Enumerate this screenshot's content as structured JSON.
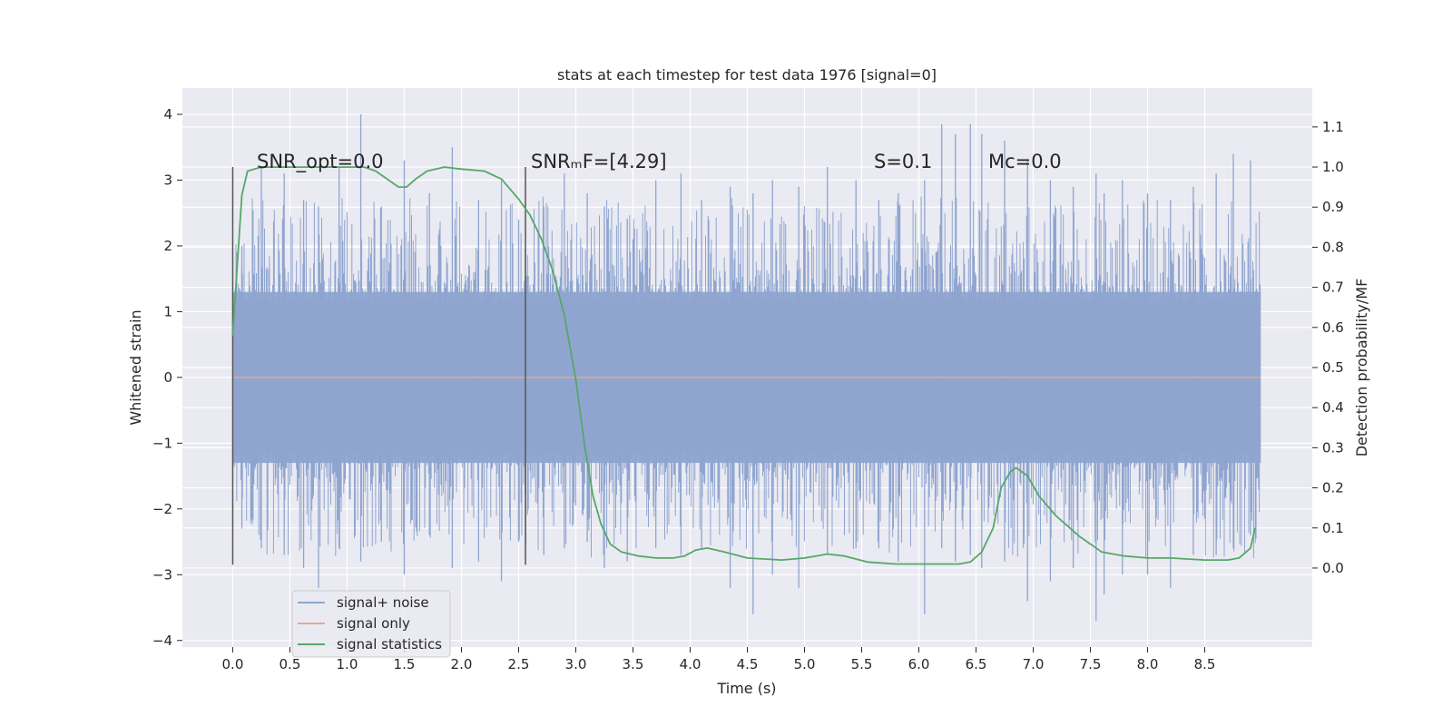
{
  "chart_data": {
    "type": "line",
    "title": "stats at each timestep for test data 1976 [signal=0]",
    "xlabel": "Time (s)",
    "ylabel": "Whitened strain",
    "ylabel_right": "Detection probability/MF",
    "xlim": [
      -0.44,
      9.44
    ],
    "ylim": [
      -4.1,
      4.4
    ],
    "ylim_right": [
      -0.197,
      1.197
    ],
    "x_ticks": [
      0.0,
      0.5,
      1.0,
      1.5,
      2.0,
      2.5,
      3.0,
      3.5,
      4.0,
      4.5,
      5.0,
      5.5,
      6.0,
      6.5,
      7.0,
      7.5,
      8.0,
      8.5
    ],
    "x_tick_labels": [
      "0.0",
      "0.5",
      "1.0",
      "1.5",
      "2.0",
      "2.5",
      "3.0",
      "3.5",
      "4.0",
      "4.5",
      "5.0",
      "5.5",
      "6.0",
      "6.5",
      "7.0",
      "7.5",
      "8.0",
      "8.5"
    ],
    "y_ticks": [
      4,
      3,
      2,
      1,
      0,
      -1,
      -2,
      -3,
      -4
    ],
    "y_tick_labels": [
      "4",
      "3",
      "2",
      "1",
      "0",
      "−1",
      "−2",
      "−3",
      "−4"
    ],
    "y_ticks_right": [
      1.1,
      1.0,
      0.9,
      0.8,
      0.7,
      0.6,
      0.5,
      0.4,
      0.3,
      0.2,
      0.1,
      0.0
    ],
    "y_tick_labels_right": [
      "1.1",
      "1.0",
      "0.9",
      "0.8",
      "0.7",
      "0.6",
      "0.5",
      "0.4",
      "0.3",
      "0.2",
      "0.1",
      "0.0"
    ],
    "grid": true,
    "legend": {
      "placement": "lower-left",
      "entries": [
        {
          "label": "signal+ noise",
          "color": "#8fa5cf"
        },
        {
          "label": "signal only",
          "color": "#e8a991"
        },
        {
          "label": "signal statistics",
          "color": "#55a868"
        }
      ]
    },
    "annotations": [
      {
        "name": "snr-opt-annotation",
        "text": "SNR_opt=0.0",
        "x": 0.2,
        "y": 3.2
      },
      {
        "name": "snr-mf-annotation",
        "text": "SNRₘF=[4.29]",
        "x": 2.6,
        "y": 3.2
      },
      {
        "name": "s-annotation",
        "text": "S=0.1",
        "x": 5.6,
        "y": 3.2
      },
      {
        "name": "mc-annotation",
        "text": "Mc=0.0",
        "x": 6.6,
        "y": 3.2
      }
    ],
    "vlines": [
      {
        "x": 0.0,
        "ymin": -2.85,
        "ymax": 3.2
      },
      {
        "x": 2.56,
        "ymin": -2.85,
        "ymax": 3.2
      }
    ],
    "noise_series": {
      "name": "signal+ noise",
      "x_range": [
        0.0,
        8.99
      ],
      "typical_amplitude": [
        -1.3,
        1.3
      ],
      "color": "#8fa5cf",
      "peaks": [
        {
          "x": 0.08,
          "hi": 2.0,
          "lo": -2.3
        },
        {
          "x": 0.25,
          "hi": 3.2,
          "lo": -2.6
        },
        {
          "x": 0.45,
          "hi": 3.1,
          "lo": -2.7
        },
        {
          "x": 0.62,
          "hi": 2.7,
          "lo": -2.9
        },
        {
          "x": 0.75,
          "hi": 2.6,
          "lo": -3.2
        },
        {
          "x": 0.93,
          "hi": 3.2,
          "lo": -2.6
        },
        {
          "x": 1.12,
          "hi": 4.0,
          "lo": -2.8
        },
        {
          "x": 1.3,
          "hi": 2.6,
          "lo": -2.5
        },
        {
          "x": 1.5,
          "hi": 3.3,
          "lo": -3.0
        },
        {
          "x": 1.72,
          "hi": 2.8,
          "lo": -2.4
        },
        {
          "x": 1.92,
          "hi": 3.5,
          "lo": -2.9
        },
        {
          "x": 2.15,
          "hi": 2.7,
          "lo": -2.8
        },
        {
          "x": 2.35,
          "hi": 3.0,
          "lo": -3.1
        },
        {
          "x": 2.5,
          "hi": 2.4,
          "lo": -2.5
        },
        {
          "x": 2.72,
          "hi": 2.6,
          "lo": -2.7
        },
        {
          "x": 2.9,
          "hi": 3.1,
          "lo": -2.6
        },
        {
          "x": 3.1,
          "hi": 2.8,
          "lo": -2.5
        },
        {
          "x": 3.25,
          "hi": 2.6,
          "lo": -2.9
        },
        {
          "x": 3.45,
          "hi": 2.4,
          "lo": -2.8
        },
        {
          "x": 3.7,
          "hi": 3.0,
          "lo": -2.6
        },
        {
          "x": 3.92,
          "hi": 3.1,
          "lo": -2.7
        },
        {
          "x": 4.1,
          "hi": 2.7,
          "lo": -2.6
        },
        {
          "x": 4.35,
          "hi": 2.9,
          "lo": -3.2
        },
        {
          "x": 4.55,
          "hi": 2.8,
          "lo": -3.6
        },
        {
          "x": 4.72,
          "hi": 3.0,
          "lo": -3.0
        },
        {
          "x": 4.95,
          "hi": 2.9,
          "lo": -3.2
        },
        {
          "x": 5.2,
          "hi": 3.2,
          "lo": -2.7
        },
        {
          "x": 5.45,
          "hi": 3.0,
          "lo": -2.6
        },
        {
          "x": 5.65,
          "hi": 2.7,
          "lo": -2.6
        },
        {
          "x": 5.82,
          "hi": 2.8,
          "lo": -2.8
        },
        {
          "x": 6.05,
          "hi": 3.0,
          "lo": -3.6
        },
        {
          "x": 6.2,
          "hi": 3.85,
          "lo": -2.6
        },
        {
          "x": 6.32,
          "hi": 3.7,
          "lo": -2.8
        },
        {
          "x": 6.45,
          "hi": 3.85,
          "lo": -2.7
        },
        {
          "x": 6.55,
          "hi": 3.7,
          "lo": -2.9
        },
        {
          "x": 6.75,
          "hi": 3.6,
          "lo": -2.8
        },
        {
          "x": 6.95,
          "hi": 3.3,
          "lo": -3.4
        },
        {
          "x": 7.15,
          "hi": 3.0,
          "lo": -3.1
        },
        {
          "x": 7.35,
          "hi": 2.9,
          "lo": -2.9
        },
        {
          "x": 7.55,
          "hi": 3.1,
          "lo": -3.7
        },
        {
          "x": 7.62,
          "hi": 2.8,
          "lo": -3.3
        },
        {
          "x": 7.78,
          "hi": 3.0,
          "lo": -3.0
        },
        {
          "x": 8.0,
          "hi": 2.8,
          "lo": -3.0
        },
        {
          "x": 8.2,
          "hi": 2.7,
          "lo": -3.2
        },
        {
          "x": 8.4,
          "hi": 2.9,
          "lo": -2.7
        },
        {
          "x": 8.6,
          "hi": 3.1,
          "lo": -2.7
        },
        {
          "x": 8.75,
          "hi": 3.4,
          "lo": -2.6
        },
        {
          "x": 8.9,
          "hi": 3.3,
          "lo": -2.4
        }
      ]
    },
    "series": [
      {
        "name": "signal only",
        "color": "#e8a991",
        "x": [
          0.0,
          8.99
        ],
        "y": [
          0.0,
          0.0
        ]
      },
      {
        "name": "signal statistics",
        "axis": "right",
        "color": "#55a868",
        "x": [
          0.0,
          0.08,
          0.13,
          0.25,
          0.5,
          0.75,
          1.0,
          1.15,
          1.25,
          1.35,
          1.45,
          1.52,
          1.6,
          1.7,
          1.85,
          2.0,
          2.2,
          2.35,
          2.5,
          2.6,
          2.7,
          2.8,
          2.9,
          3.0,
          3.08,
          3.15,
          3.22,
          3.3,
          3.4,
          3.55,
          3.7,
          3.85,
          3.95,
          4.05,
          4.15,
          4.3,
          4.5,
          4.8,
          5.0,
          5.1,
          5.2,
          5.35,
          5.55,
          5.8,
          6.0,
          6.2,
          6.35,
          6.45,
          6.55,
          6.65,
          6.72,
          6.8,
          6.85,
          6.95,
          7.05,
          7.2,
          7.4,
          7.6,
          7.8,
          8.0,
          8.2,
          8.5,
          8.7,
          8.8,
          8.9,
          8.94
        ],
        "y": [
          0.58,
          0.93,
          0.99,
          1.0,
          1.0,
          1.0,
          1.0,
          1.0,
          0.99,
          0.97,
          0.95,
          0.95,
          0.97,
          0.99,
          1.0,
          0.995,
          0.99,
          0.97,
          0.92,
          0.88,
          0.82,
          0.74,
          0.63,
          0.47,
          0.3,
          0.18,
          0.11,
          0.06,
          0.04,
          0.03,
          0.025,
          0.025,
          0.03,
          0.045,
          0.05,
          0.04,
          0.025,
          0.02,
          0.025,
          0.03,
          0.035,
          0.03,
          0.015,
          0.01,
          0.01,
          0.01,
          0.01,
          0.015,
          0.04,
          0.1,
          0.2,
          0.24,
          0.25,
          0.23,
          0.18,
          0.13,
          0.08,
          0.04,
          0.03,
          0.025,
          0.025,
          0.02,
          0.02,
          0.025,
          0.05,
          0.1
        ]
      }
    ]
  }
}
